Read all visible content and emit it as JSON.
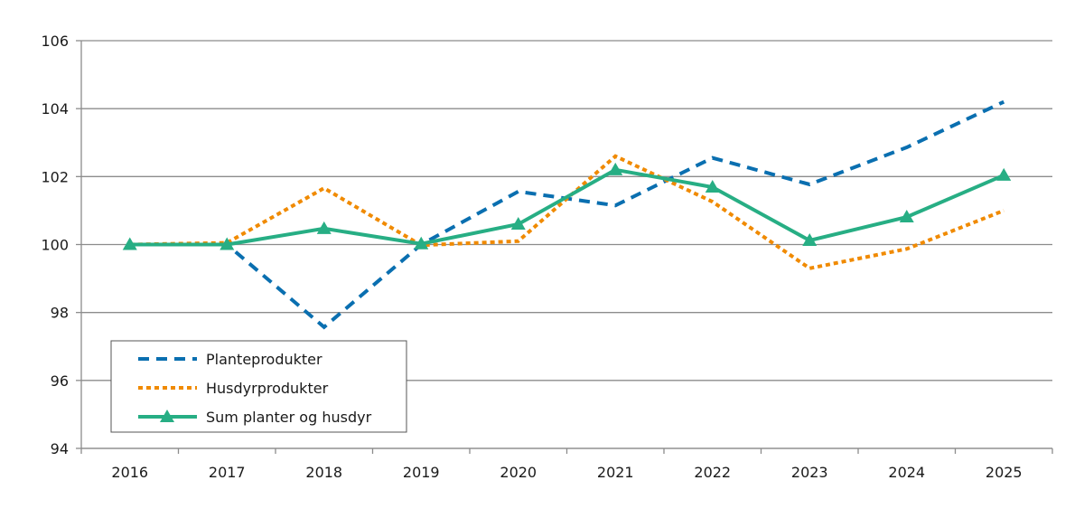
{
  "chart_data": {
    "type": "line",
    "categories": [
      "2016",
      "2017",
      "2018",
      "2019",
      "2020",
      "2021",
      "2022",
      "2023",
      "2024",
      "2025"
    ],
    "ylim": [
      94,
      106
    ],
    "yticks": [
      94,
      96,
      98,
      100,
      102,
      104,
      106
    ],
    "grid": true,
    "legend_position": "bottom-left",
    "series": [
      {
        "name": "Planteprodukter",
        "color": "#0a6fb0",
        "style": "dashed",
        "values": [
          100,
          100,
          97.57,
          100,
          101.56,
          101.15,
          102.55,
          101.77,
          102.86,
          104.2
        ]
      },
      {
        "name": "Husdyrprodukter",
        "color": "#f08a00",
        "style": "dotted",
        "values": [
          100,
          100.05,
          101.66,
          99.98,
          100.1,
          102.6,
          101.26,
          99.3,
          99.87,
          101.0
        ]
      },
      {
        "name": "Sum planter og husdyr",
        "color": "#27ae84",
        "style": "solid-triangle",
        "values": [
          100,
          100,
          100.47,
          100.02,
          100.6,
          102.2,
          101.69,
          100.12,
          100.81,
          102.04
        ]
      }
    ]
  }
}
